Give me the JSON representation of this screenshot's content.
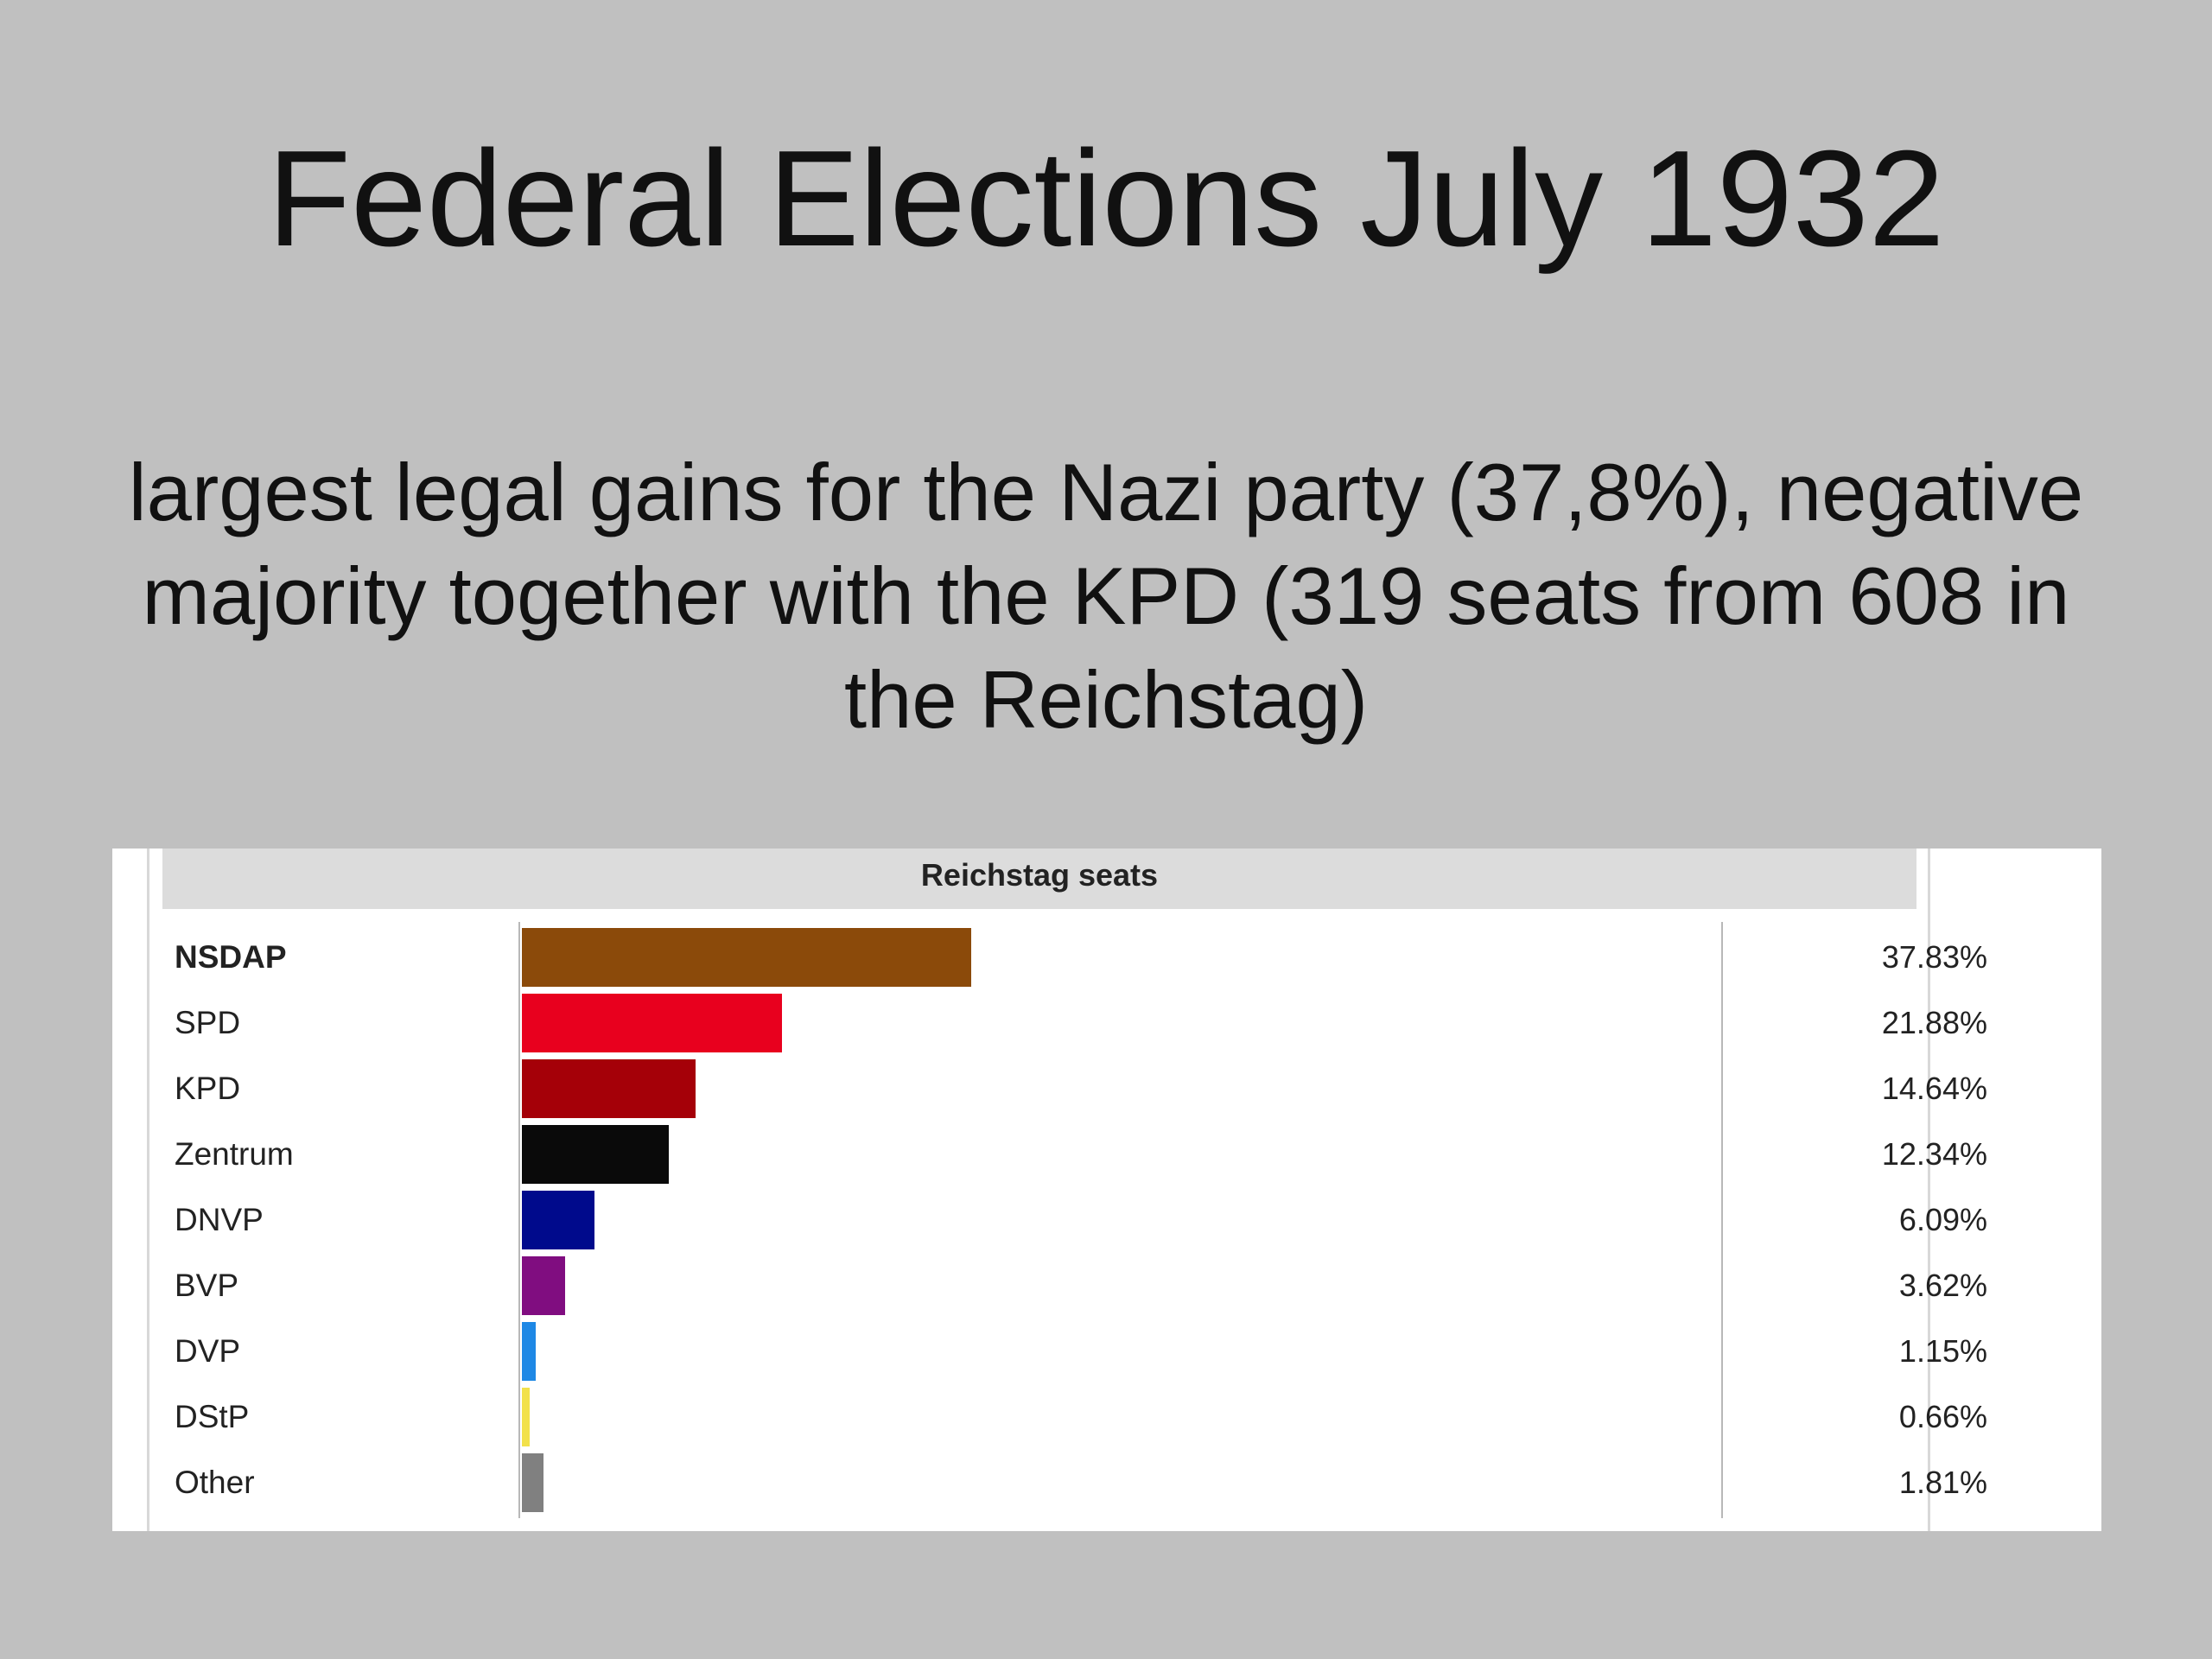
{
  "slide": {
    "title": "Federal Elections July 1932",
    "subtitle": "largest legal gains for the Nazi party (37,8%), negative majority together with the KPD (319 seats from 608 in the Reichstag)"
  },
  "chart_data": {
    "type": "bar",
    "orientation": "horizontal",
    "title": "Reichstag seats",
    "xlabel": "",
    "ylabel": "",
    "xlim": [
      0,
      100
    ],
    "grid": false,
    "legend": "none",
    "categories": [
      "NSDAP",
      "SPD",
      "KPD",
      "Zentrum",
      "DNVP",
      "BVP",
      "DVP",
      "DStP",
      "Other"
    ],
    "values": [
      37.83,
      21.88,
      14.64,
      12.34,
      6.09,
      3.62,
      1.15,
      0.66,
      1.81
    ],
    "value_labels": [
      "37.83%",
      "21.88%",
      "14.64%",
      "12.34%",
      "6.09%",
      "3.62%",
      "1.15%",
      "0.66%",
      "1.81%"
    ],
    "colors": [
      "#8b4a0a",
      "#e8001e",
      "#a50008",
      "#0a0a0a",
      "#000a8c",
      "#800d80",
      "#1e88e5",
      "#f2e14a",
      "#808080"
    ],
    "bold_categories": [
      "NSDAP"
    ]
  }
}
